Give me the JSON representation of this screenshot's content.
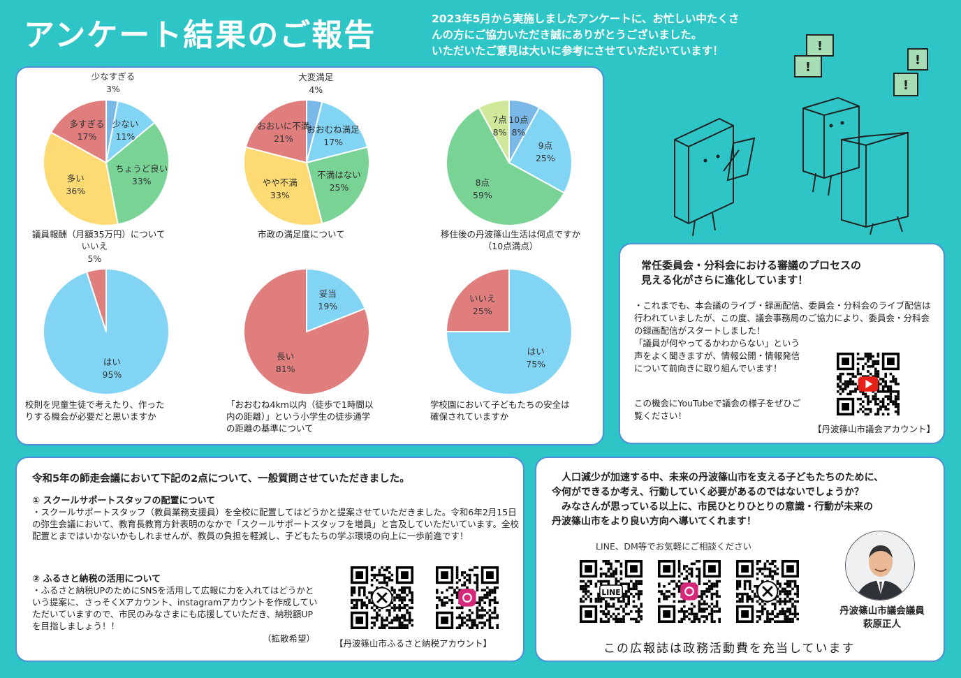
{
  "header": {
    "title": "アンケート結果のご報告",
    "intro_lines": [
      "2023年5月から実施しましたアンケートに、お忙しい中たくさ",
      "んの方にご協力いただき誠にありがとうございました。",
      "いただいたご意見は大いに参考にさせていただいています！"
    ]
  },
  "surveys": {
    "captions": {
      "c1": [
        "議員報酬（月額35万円）について"
      ],
      "c2": [
        "市政の満足度について"
      ],
      "c3": [
        "移住後の丹波篠山生活は何点ですか",
        "（10点満点）"
      ],
      "c4": [
        "校則を児童生徒で考えたり、作った",
        "りする機会が必要だと思いますか"
      ],
      "c5": [
        "「おおむね4km以内（徒歩で1時間以",
        "内の距離）」という小学生の徒歩通学",
        "の距離の基準について"
      ],
      "c6": [
        "学校園において子どもたちの安全は",
        "確保されていますか"
      ]
    }
  },
  "chart_data": [
    {
      "type": "pie",
      "title": "議員報酬（月額35万円）について",
      "slices": [
        {
          "label": "少なすぎる",
          "value": 3,
          "color": "#7ab8e8"
        },
        {
          "label": "少ない",
          "value": 11,
          "color": "#82d4f5"
        },
        {
          "label": "ちょうど良い",
          "value": 33,
          "color": "#78d395"
        },
        {
          "label": "多い",
          "value": 36,
          "color": "#fddb72"
        },
        {
          "label": "多すぎる",
          "value": 17,
          "color": "#e07e7e"
        }
      ]
    },
    {
      "type": "pie",
      "title": "市政の満足度について",
      "slices": [
        {
          "label": "大変満足",
          "value": 4,
          "color": "#7ab8e8"
        },
        {
          "label": "おおむね満足",
          "value": 17,
          "color": "#82d4f5"
        },
        {
          "label": "不満はない",
          "value": 25,
          "color": "#78d395"
        },
        {
          "label": "やや不満",
          "value": 33,
          "color": "#fddb72"
        },
        {
          "label": "おおいに不満",
          "value": 21,
          "color": "#e07e7e"
        }
      ]
    },
    {
      "type": "pie",
      "title": "移住後の丹波篠山生活は何点ですか（10点満点）",
      "slices": [
        {
          "label": "10点",
          "value": 8,
          "color": "#7ab8e8"
        },
        {
          "label": "9点",
          "value": 25,
          "color": "#82d4f5"
        },
        {
          "label": "8点",
          "value": 59,
          "color": "#78d395"
        },
        {
          "label": "7点",
          "value": 8,
          "color": "#cfe89a"
        }
      ]
    },
    {
      "type": "pie",
      "title": "校則を児童生徒で考えたり、作ったりする機会が必要だと思いますか",
      "slices": [
        {
          "label": "はい",
          "value": 95,
          "color": "#82d4f5"
        },
        {
          "label": "いいえ",
          "value": 5,
          "color": "#e07e7e"
        }
      ]
    },
    {
      "type": "pie",
      "title": "「おおむね4km以内（徒歩で1時間以内の距離）」という小学生の徒歩通学の距離の基準について",
      "slices": [
        {
          "label": "妥当",
          "value": 19,
          "color": "#82d4f5"
        },
        {
          "label": "長い",
          "value": 81,
          "color": "#e07e7e"
        }
      ]
    },
    {
      "type": "pie",
      "title": "学校園において子どもたちの安全は確保されていますか",
      "slices": [
        {
          "label": "はい",
          "value": 75,
          "color": "#82d4f5"
        },
        {
          "label": "いいえ",
          "value": 25,
          "color": "#e07e7e"
        }
      ]
    }
  ],
  "committee": {
    "heading": [
      "常任委員会・分科会における審議のプロセスの",
      "見える化がさらに進化しています！"
    ],
    "body1": "・これまでも、本会議のライブ・録画配信、委員会・分科会のライブ配信は行われていましたが、この度、議会事務局のご協力により、委員会・分科会の録画配信がスタートしました！",
    "body2": "「議員が何やってるかわからない」という声をよく聞きますが、情報公開・情報発信について前向きに取り組んでいます！",
    "body3": "この機会にYouTubeで議会の様子をぜひご覧ください！",
    "account": "【丹波篠山市議会アカウント】",
    "qr_icon": "youtube-icon"
  },
  "general": {
    "heading": "令和5年の師走会議において下記の2点について、一般質問させていただきました。",
    "item1_title": "① スクールサポートスタッフの配置について",
    "item1_body": "・スクールサポートスタッフ（教員業務支援員）を全校に配置してはどうかと提案させていただきました。令和6年2月15日の弥生会議において、教育長教育方針表明のなかで「スクールサポートスタッフを増員」と言及していただいています。全校配置とまではいかないかもしれませんが、教員の負担を軽減し、子どもたちの学ぶ環境の向上に一歩前進です！",
    "item2_title": "② ふるさと納税の活用について",
    "item2_body": "・ふるさと納税UPのためにSNSを活用して広報に力を入れてはどうかという提案に、さっそくXアカウント、instagramアカウントを作成していただいていますので、市民のみなさまにも応援していただき、納税額UPを目指しましょう！！",
    "item2_note": "（拡散希望）",
    "account": "【丹波篠山市ふるさと納税アカウント】",
    "qr_icons": [
      "x-icon",
      "instagram-icon"
    ]
  },
  "mayor": {
    "message_lines": [
      "　人口減少が加速する中、未来の丹波篠山市を支える子どもたちのために、",
      "今何ができるか考え、行動していく必要があるのではないでしょうか？",
      "　みなさんが思っている以上に、市民ひとりひとりの意識・行動が未来の",
      "丹波篠山市をより良い方向へ導いてくれます！"
    ],
    "consult": "LINE、DM等でお気軽にご相談ください",
    "name_role": "丹波篠山市議会議員",
    "name": "萩原正人",
    "footer": "この広報誌は政務活動費を充当しています",
    "qr_icons": [
      "line-icon",
      "instagram-icon",
      "x-icon"
    ],
    "line_label": "LINE"
  }
}
